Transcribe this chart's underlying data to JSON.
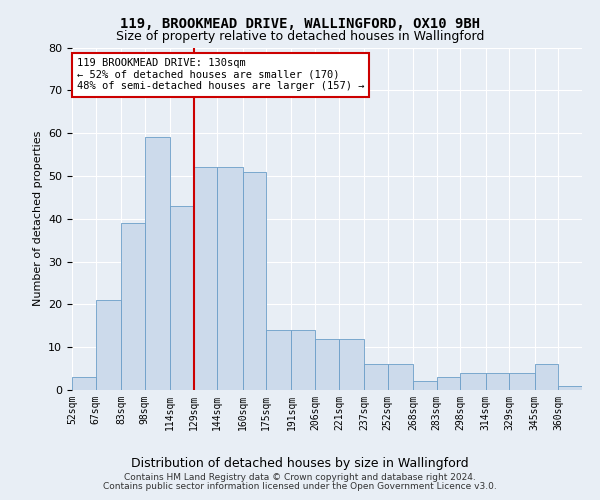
{
  "title": "119, BROOKMEAD DRIVE, WALLINGFORD, OX10 9BH",
  "subtitle": "Size of property relative to detached houses in Wallingford",
  "xlabel": "Distribution of detached houses by size in Wallingford",
  "ylabel": "Number of detached properties",
  "bins": [
    52,
    67,
    83,
    98,
    114,
    129,
    144,
    160,
    175,
    191,
    206,
    221,
    237,
    252,
    268,
    283,
    298,
    314,
    329,
    345,
    360
  ],
  "counts": [
    3,
    21,
    39,
    59,
    43,
    52,
    52,
    51,
    14,
    14,
    12,
    12,
    6,
    6,
    2,
    3,
    4,
    4,
    4,
    6,
    1
  ],
  "bar_color": "#ccdaeb",
  "bar_edge_color": "#6b9ec8",
  "vline_color": "#cc0000",
  "vline_x": 129,
  "annotation_text": "119 BROOKMEAD DRIVE: 130sqm\n← 52% of detached houses are smaller (170)\n48% of semi-detached houses are larger (157) →",
  "annotation_box_color": "white",
  "annotation_box_edge": "#cc0000",
  "ylim": [
    0,
    80
  ],
  "yticks": [
    0,
    10,
    20,
    30,
    40,
    50,
    60,
    70,
    80
  ],
  "footer1": "Contains HM Land Registry data © Crown copyright and database right 2024.",
  "footer2": "Contains public sector information licensed under the Open Government Licence v3.0.",
  "bg_color": "#e8eef5",
  "plot_bg_color": "#e8eef5",
  "grid_color": "#ffffff",
  "title_fontsize": 10,
  "subtitle_fontsize": 9
}
